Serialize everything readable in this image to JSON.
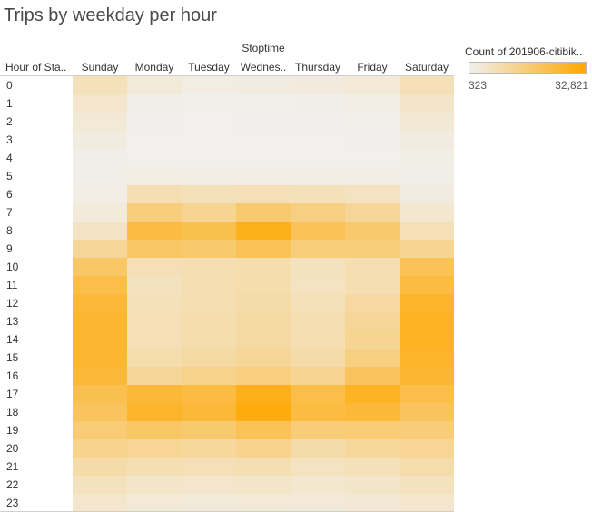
{
  "title": "Trips by weekday per hour",
  "column_group_label": "Stoptime",
  "row_header_label": "Hour of Sta..",
  "column_labels": [
    "Sunday",
    "Monday",
    "Tuesday",
    "Wednes..",
    "Thursday",
    "Friday",
    "Saturday"
  ],
  "legend": {
    "title": "Count of 201906-citibik..",
    "min_label": "323",
    "max_label": "32,821",
    "color_low": "#f1f0ee",
    "color_high": "#ffa800"
  },
  "chart_data": {
    "type": "heatmap",
    "title": "Trips by weekday per hour",
    "x_group_label": "Stoptime",
    "y_label": "Hour of Sta..",
    "x_categories": [
      "Sunday",
      "Monday",
      "Tuesday",
      "Wednes..",
      "Thursday",
      "Friday",
      "Saturday"
    ],
    "y_categories": [
      "0",
      "1",
      "2",
      "3",
      "4",
      "5",
      "6",
      "7",
      "8",
      "9",
      "10",
      "11",
      "12",
      "13",
      "14",
      "15",
      "16",
      "17",
      "18",
      "19",
      "20",
      "21",
      "22",
      "23"
    ],
    "value_range": [
      323,
      32821
    ],
    "values": [
      [
        7500,
        3200,
        2000,
        2300,
        2600,
        3400,
        7800
      ],
      [
        5000,
        1300,
        900,
        1000,
        1100,
        1600,
        5200
      ],
      [
        3500,
        700,
        500,
        550,
        600,
        900,
        3700
      ],
      [
        2200,
        450,
        360,
        380,
        400,
        550,
        2400
      ],
      [
        1300,
        400,
        330,
        340,
        360,
        450,
        1400
      ],
      [
        1100,
        2000,
        1800,
        1900,
        1800,
        1700,
        1200
      ],
      [
        1600,
        8500,
        7500,
        8000,
        7500,
        6500,
        2200
      ],
      [
        3000,
        16000,
        13000,
        18000,
        15000,
        12000,
        4500
      ],
      [
        6000,
        24000,
        22000,
        29000,
        21000,
        18000,
        8000
      ],
      [
        12000,
        19000,
        18000,
        21000,
        16000,
        16000,
        13000
      ],
      [
        19000,
        8000,
        8500,
        9000,
        7000,
        8500,
        21000
      ],
      [
        23000,
        7000,
        8500,
        9000,
        6500,
        8500,
        24000
      ],
      [
        25000,
        7500,
        8500,
        10000,
        7500,
        11000,
        27000
      ],
      [
        26000,
        8000,
        9000,
        10500,
        8500,
        12000,
        28000
      ],
      [
        26000,
        8000,
        9000,
        10500,
        8500,
        13000,
        28000
      ],
      [
        26000,
        9500,
        10500,
        12000,
        10000,
        15000,
        27000
      ],
      [
        25000,
        12000,
        14000,
        15500,
        13000,
        20000,
        26000
      ],
      [
        22000,
        25000,
        24000,
        29000,
        23000,
        28000,
        23000
      ],
      [
        20000,
        27000,
        25000,
        31000,
        24000,
        25000,
        20000
      ],
      [
        17000,
        19000,
        17500,
        21000,
        16500,
        17000,
        16500
      ],
      [
        13500,
        12500,
        11500,
        13500,
        10000,
        11500,
        12500
      ],
      [
        10000,
        8500,
        7800,
        8500,
        6500,
        7500,
        9500
      ],
      [
        7000,
        5500,
        5000,
        5500,
        4500,
        5500,
        7000
      ],
      [
        5000,
        3500,
        3200,
        3400,
        3300,
        4000,
        5000
      ]
    ]
  }
}
